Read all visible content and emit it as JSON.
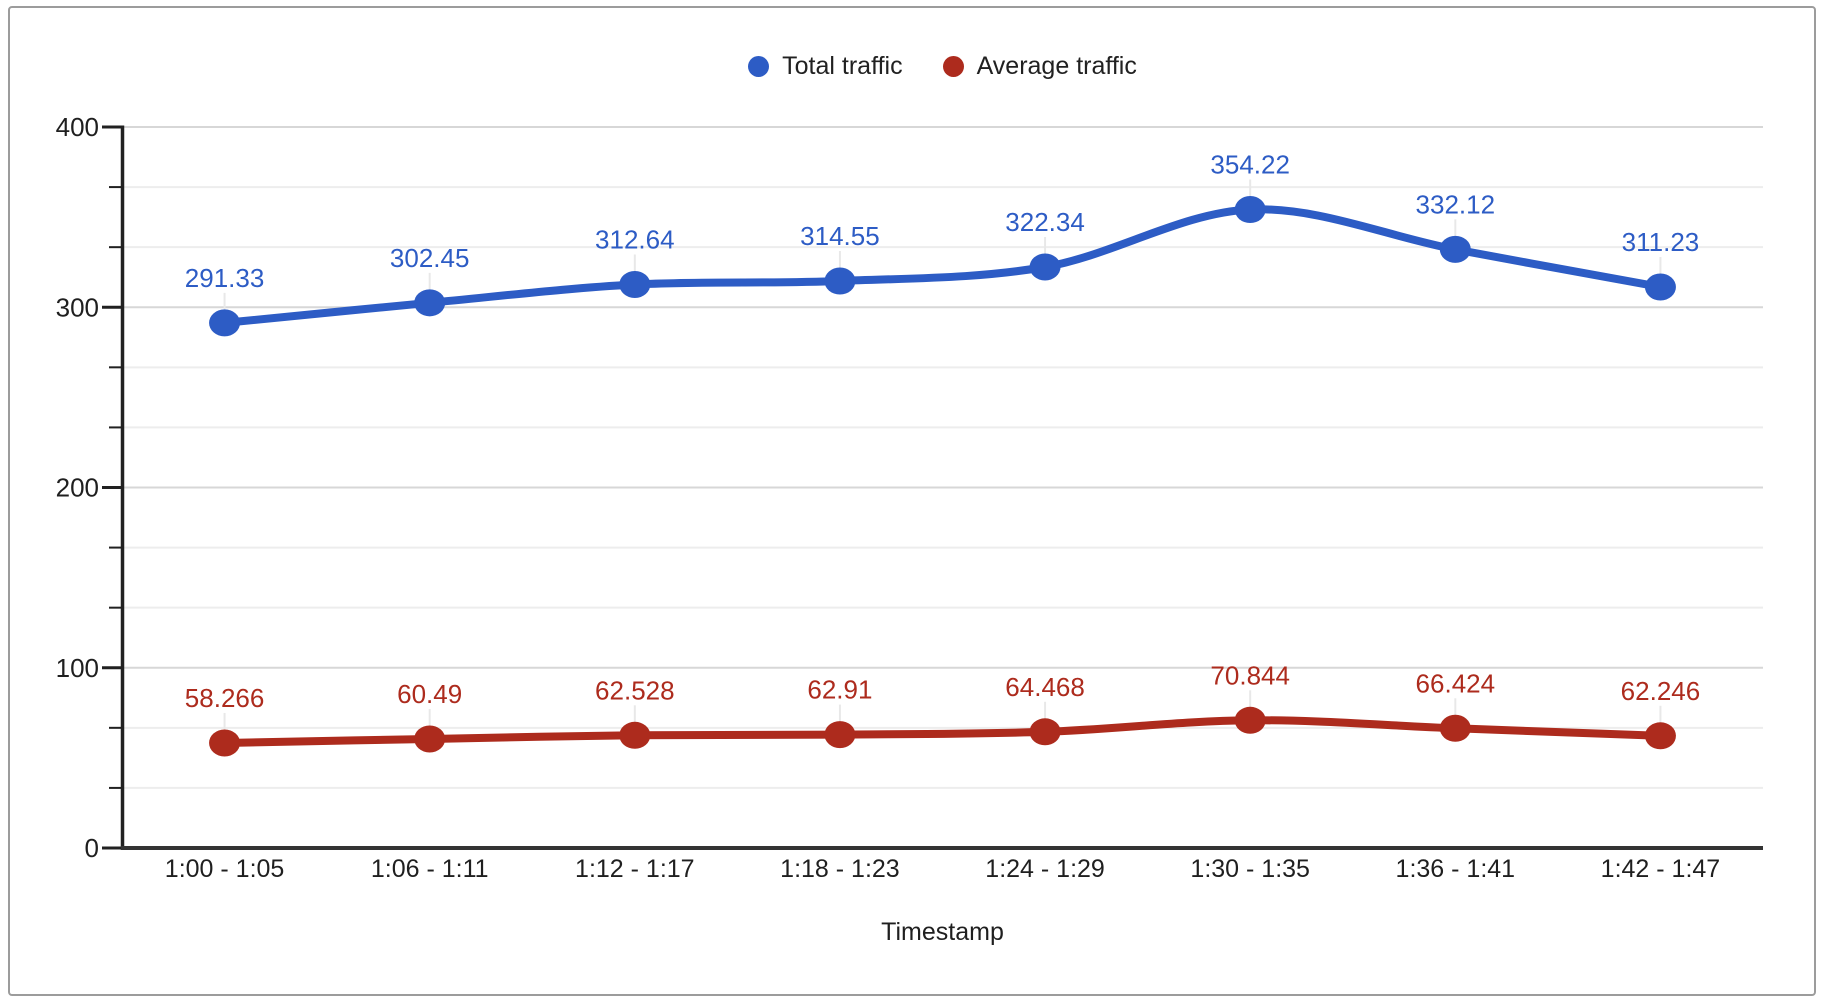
{
  "chart_data": {
    "type": "line",
    "title": "",
    "xlabel": "Timestamp",
    "ylabel": "",
    "ylim": [
      0,
      400
    ],
    "yticks": [
      0,
      100,
      200,
      300,
      400
    ],
    "minor_gridlines_per_major": 2,
    "smooth": true,
    "grid": true,
    "legend_position": "top-center",
    "categories": [
      "1:00 - 1:05",
      "1:06 - 1:11",
      "1:12 - 1:17",
      "1:18 - 1:23",
      "1:24 - 1:29",
      "1:30 - 1:35",
      "1:36 - 1:41",
      "1:42 - 1:47"
    ],
    "series": [
      {
        "name": "Total traffic",
        "color": "#2d5cc5",
        "values": [
          291.33,
          302.45,
          312.64,
          314.55,
          322.34,
          354.22,
          332.12,
          311.23
        ],
        "data_labels": [
          "291.33",
          "302.45",
          "312.64",
          "314.55",
          "322.34",
          "354.22",
          "332.12",
          "311.23"
        ]
      },
      {
        "name": "Average traffic",
        "color": "#ad2b1d",
        "values": [
          58.266,
          60.49,
          62.528,
          62.91,
          64.468,
          70.844,
          66.424,
          62.246
        ],
        "data_labels": [
          "58.266",
          "60.49",
          "62.528",
          "62.91",
          "64.468",
          "70.844",
          "66.424",
          "62.246"
        ]
      }
    ]
  },
  "colors": {
    "axis": "#212121",
    "grid_major": "#d7d7d7",
    "grid_minor": "#ededed",
    "tick_text": "#1f1f1f",
    "leader_line": "#e8e8e8",
    "card_border": "#9c9c9c",
    "background": "#ffffff"
  }
}
